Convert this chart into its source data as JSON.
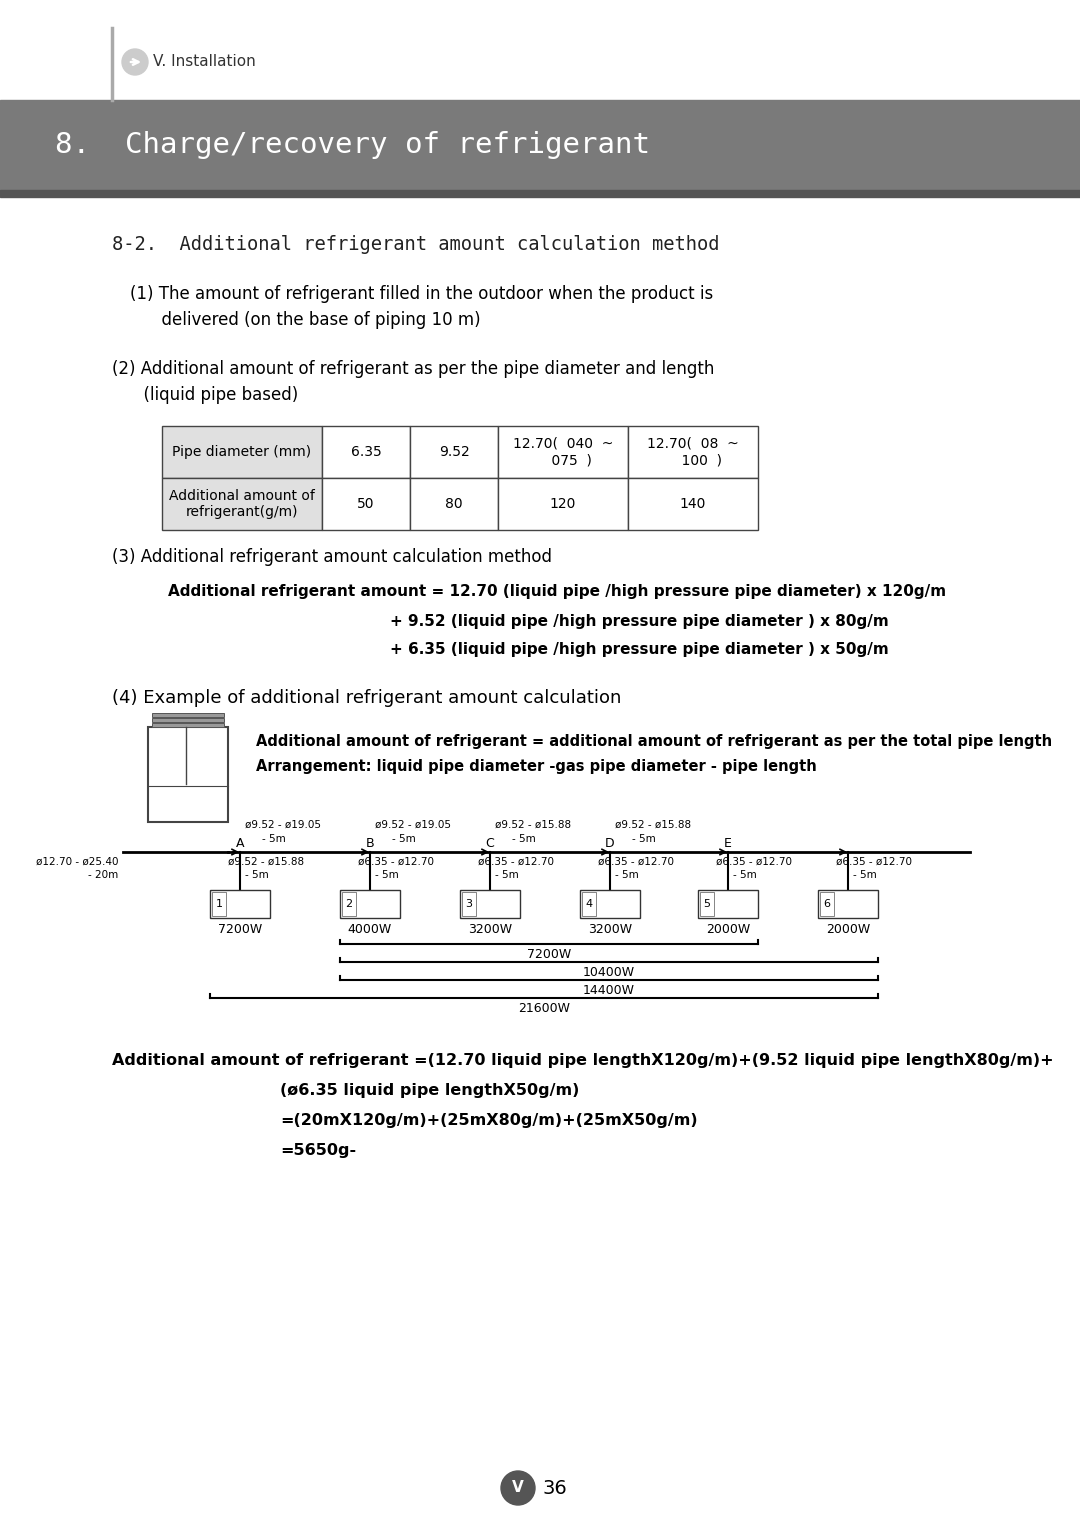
{
  "header_section": {
    "nav_text": "V. Installation",
    "title": "8.  Charge/recovery of refrigerant",
    "header_bg": "#7a7a7a",
    "header_stripe": "#555555"
  },
  "section_title": "8-2.  Additional refrigerant amount calculation method",
  "item1_line1": "(1) The amount of refrigerant filled in the outdoor when the product is",
  "item1_line2": "      delivered (on the base of piping 10 m)",
  "item2_line1": "(2) Additional amount of refrigerant as per the pipe diameter and length",
  "item2_line2": "      (liquid pipe based)",
  "table": {
    "col1_header": "Pipe diameter (mm)",
    "col2_header": "6.35",
    "col3_header": "9.52",
    "col4_header": "12.70(  040  ~\n    075  )",
    "col5_header": "12.70(  08  ~\n    100  )",
    "row2_col1": "Additional amount of\nrefrigerant(g/m)",
    "row2_col2": "50",
    "row2_col3": "80",
    "row2_col4": "120",
    "row2_col5": "140"
  },
  "item3_title": "(3) Additional refrigerant amount calculation method",
  "item3_line1": "Additional refrigerant amount = 12.70 (liquid pipe /high pressure pipe diameter) x 120g/m",
  "item3_line2": "+ 9.52 (liquid pipe /high pressure pipe diameter ) x 80g/m",
  "item3_line3": "+ 6.35 (liquid pipe /high pressure pipe diameter ) x 50g/m",
  "item4_title": "(4) Example of additional refrigerant amount calculation",
  "item4_note1": "Additional amount of refrigerant = additional amount of refrigerant as per the total pipe length",
  "item4_note2": "Arrangement: liquid pipe diameter -gas pipe diameter - pipe length",
  "left_pipe_label1": "ø12.70 - ø25.40",
  "left_pipe_label2": "- 20m",
  "units_labels": [
    "1",
    "2",
    "3",
    "4",
    "5",
    "6"
  ],
  "watt_labels": [
    "7200W",
    "4000W",
    "3200W",
    "3200W",
    "2000W",
    "2000W"
  ],
  "power_bars": [
    "7200W",
    "10400W",
    "14400W",
    "21600W"
  ],
  "calc_line1": "Additional amount of refrigerant =(12.70 liquid pipe lengthX120g/m)+(9.52 liquid pipe lengthX80g/m)+",
  "calc_line2": "(ø6.35 liquid pipe lengthX50g/m)",
  "calc_line3": "=(20mX120g/m)+(25mX80g/m)+(25mX50g/m)",
  "calc_line4": "=5650g-",
  "page_num": "36",
  "bg_color": "#ffffff",
  "text_color": "#000000"
}
